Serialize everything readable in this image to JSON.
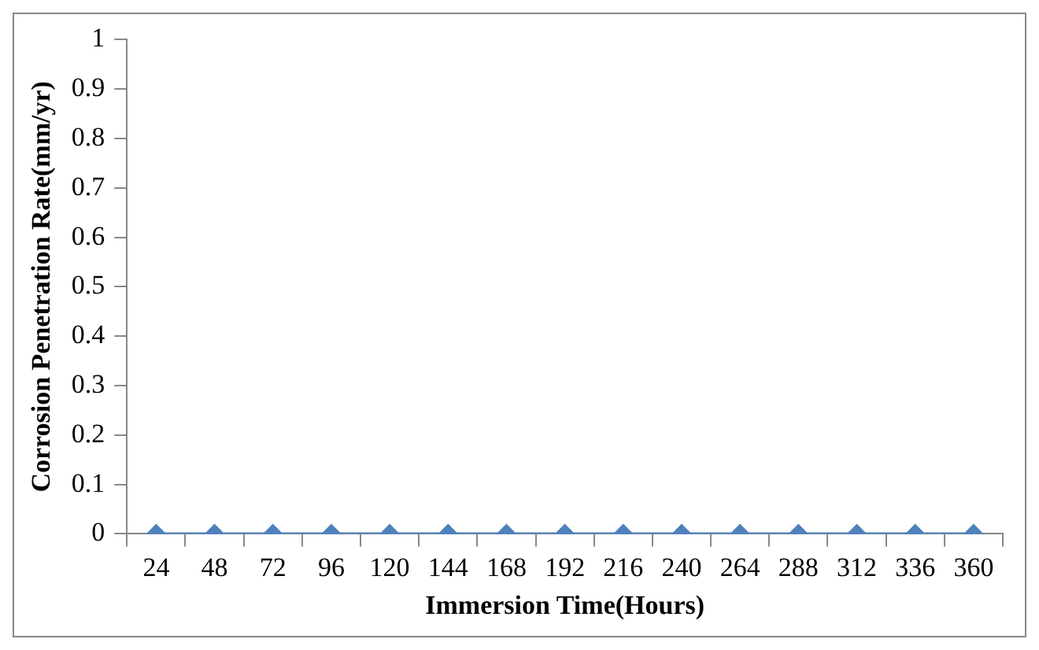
{
  "chart_data": {
    "type": "line",
    "xlabel": "Immersion Time(Hours)",
    "ylabel": "Corrosion Penetration Rate(mm/yr)",
    "categories": [
      "24",
      "48",
      "72",
      "96",
      "120",
      "144",
      "168",
      "192",
      "216",
      "240",
      "264",
      "288",
      "312",
      "336",
      "360"
    ],
    "series": [
      {
        "color": "#4f81bd",
        "values": [
          0,
          0,
          0,
          0,
          0,
          0,
          0,
          0,
          0,
          0,
          0,
          0,
          0,
          0,
          0
        ]
      }
    ],
    "ylim": [
      0,
      1
    ],
    "yticks": [
      0,
      0.1,
      0.2,
      0.3,
      0.4,
      0.5,
      0.6,
      0.7,
      0.8,
      0.9,
      1
    ],
    "grid": false,
    "legend": false,
    "marker": "diamond",
    "line_style": "solid"
  }
}
